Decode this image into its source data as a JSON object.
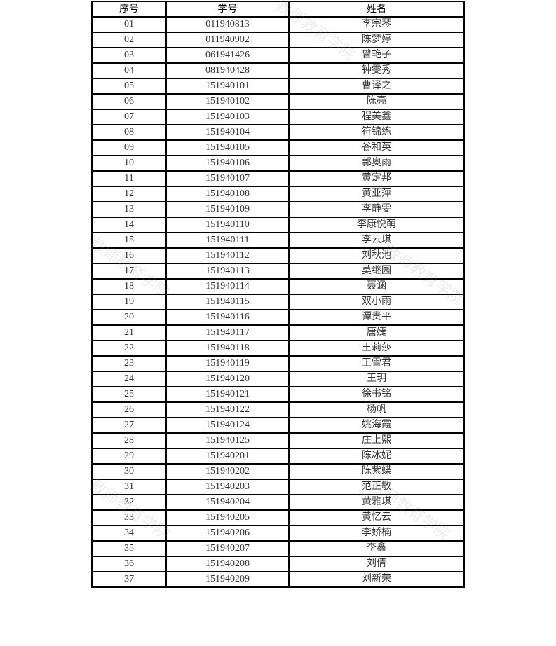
{
  "watermark": "教师教育学院",
  "headers": [
    "序号",
    "学号",
    "姓名"
  ],
  "rows": [
    [
      "01",
      "011940813",
      "李宗琴"
    ],
    [
      "02",
      "011940902",
      "陈梦婷"
    ],
    [
      "03",
      "061941426",
      "曾艳子"
    ],
    [
      "04",
      "081940428",
      "钟雯秀"
    ],
    [
      "05",
      "151940101",
      "曹译之"
    ],
    [
      "06",
      "151940102",
      "陈亮"
    ],
    [
      "07",
      "151940103",
      "程美鑫"
    ],
    [
      "08",
      "151940104",
      "符锦练"
    ],
    [
      "09",
      "151940105",
      "谷和英"
    ],
    [
      "10",
      "151940106",
      "郭奥雨"
    ],
    [
      "11",
      "151940107",
      "黄定邦"
    ],
    [
      "12",
      "151940108",
      "黄亚萍"
    ],
    [
      "13",
      "151940109",
      "李静雯"
    ],
    [
      "14",
      "151940110",
      "李康悦萌"
    ],
    [
      "15",
      "151940111",
      "李云琪"
    ],
    [
      "16",
      "151940112",
      "刘秋池"
    ],
    [
      "17",
      "151940113",
      "莫继园"
    ],
    [
      "18",
      "151940114",
      "聂涵"
    ],
    [
      "19",
      "151940115",
      "双小雨"
    ],
    [
      "20",
      "151940116",
      "谭贵平"
    ],
    [
      "21",
      "151940117",
      "唐婕"
    ],
    [
      "22",
      "151940118",
      "王莉莎"
    ],
    [
      "23",
      "151940119",
      "王雪君"
    ],
    [
      "24",
      "151940120",
      "王玥"
    ],
    [
      "25",
      "151940121",
      "徐书铭"
    ],
    [
      "26",
      "151940122",
      "杨帆"
    ],
    [
      "27",
      "151940124",
      "姚海霞"
    ],
    [
      "28",
      "151940125",
      "庄上熙"
    ],
    [
      "29",
      "151940201",
      "陈冰妮"
    ],
    [
      "30",
      "151940202",
      "陈紫蝶"
    ],
    [
      "31",
      "151940203",
      "范正敏"
    ],
    [
      "32",
      "151940204",
      "黄雅琪"
    ],
    [
      "33",
      "151940205",
      "黄忆云"
    ],
    [
      "34",
      "151940206",
      "李娇楠"
    ],
    [
      "35",
      "151940207",
      "李鑫"
    ],
    [
      "36",
      "151940208",
      "刘倩"
    ],
    [
      "37",
      "151940209",
      "刘新荣"
    ]
  ]
}
